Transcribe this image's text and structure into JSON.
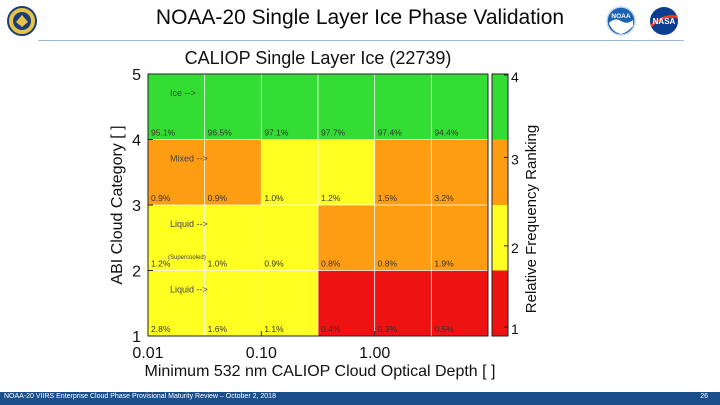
{
  "slide": {
    "title": "NOAA-20 Single Layer Ice Phase Validation",
    "footer": "NOAA-20 VIIRS Enterprise Cloud Phase Provisional Maturity Review – October 2, 2018",
    "page_number": "26"
  },
  "logos": {
    "left": "agency-emblem",
    "noaa": "NOAA",
    "nasa": "NASA"
  },
  "colors": {
    "green": "#33dd33",
    "yellow": "#ffff22",
    "orange": "#ff9d12",
    "red": "#ee1212",
    "footer": "#1b4f8c"
  },
  "chart_data": {
    "type": "heatmap",
    "title": "CALIOP Single Layer Ice (22739)",
    "xlabel": "Minimum 532 nm CALIOP Cloud Optical Depth [ ]",
    "ylabel": "ABI Cloud Category [ ]",
    "x_ticks": [
      "0.01",
      "0.10",
      "1.00"
    ],
    "y_ticks": [
      "1",
      "2",
      "3",
      "4",
      "5"
    ],
    "y_range": [
      1,
      5
    ],
    "n_cols": 6,
    "rows": [
      {
        "category_label": "Ice -->",
        "sub_label": "",
        "ranks": [
          4,
          4,
          4,
          4,
          4,
          4
        ],
        "values": [
          "95.1%",
          "96.5%",
          "97.1%",
          "97.7%",
          "97.4%",
          "94.4%"
        ]
      },
      {
        "category_label": "Mixed -->",
        "sub_label": "",
        "ranks": [
          3,
          3,
          2,
          2,
          3,
          3
        ],
        "values": [
          "0.9%",
          "0.9%",
          "1.0%",
          "1.2%",
          "1.5%",
          "3.2%"
        ]
      },
      {
        "category_label": "Liquid -->",
        "sub_label": "(Supercooled)",
        "ranks": [
          2,
          2,
          2,
          3,
          3,
          3
        ],
        "values": [
          "1.2%",
          "1.0%",
          "0.9%",
          "0.8%",
          "0.8%",
          "1.9%"
        ]
      },
      {
        "category_label": "Liquid -->",
        "sub_label": "",
        "ranks": [
          2,
          2,
          2,
          1,
          1,
          1
        ],
        "values": [
          "2.8%",
          "1.6%",
          "1.1%",
          "0.4%",
          "0.3%",
          "0.5%"
        ]
      }
    ],
    "colorbar": {
      "label": "Relative Frequency Ranking",
      "ticks": [
        "1",
        "2",
        "3",
        "4"
      ]
    }
  }
}
